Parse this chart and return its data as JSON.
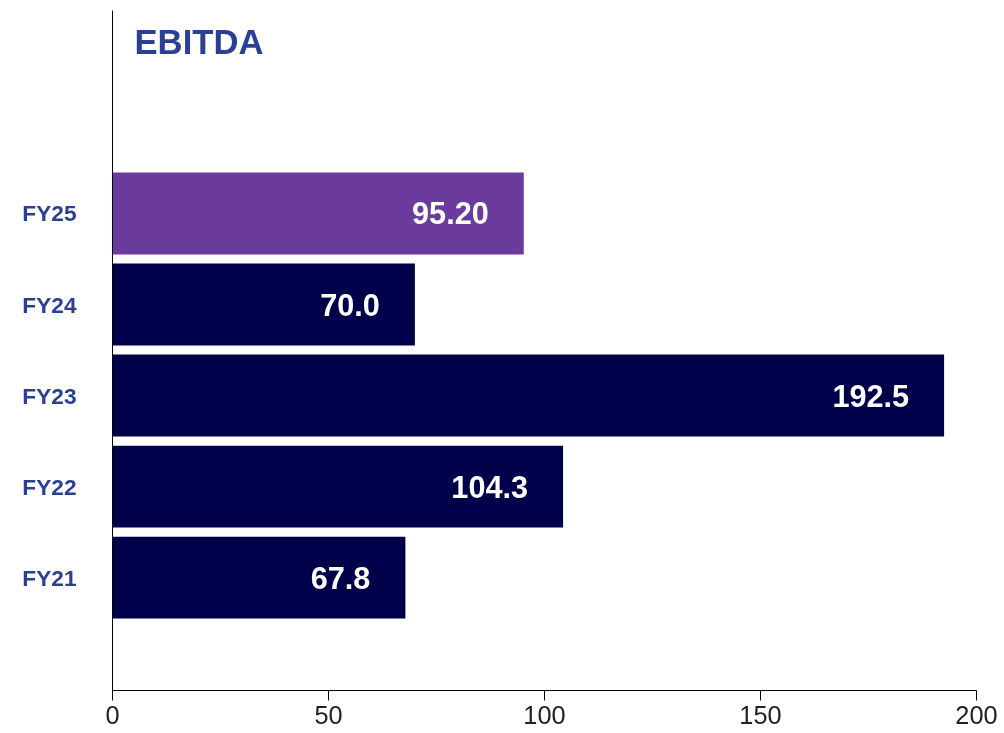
{
  "chart_data": {
    "type": "bar",
    "orientation": "horizontal",
    "title": "EBITDA",
    "categories": [
      "FY25",
      "FY24",
      "FY23",
      "FY22",
      "FY21"
    ],
    "values": [
      95.2,
      70.0,
      192.5,
      104.3,
      67.8
    ],
    "colors": [
      "#6a3a9c",
      "#00004a",
      "#00004a",
      "#00004a",
      "#00004a"
    ],
    "value_labels": [
      "95.20",
      "70.0",
      "192.5",
      "104.3",
      "67.8"
    ],
    "xlim": [
      0,
      200
    ],
    "xticks": [
      0,
      50,
      100,
      150,
      200
    ],
    "grid": false
  }
}
